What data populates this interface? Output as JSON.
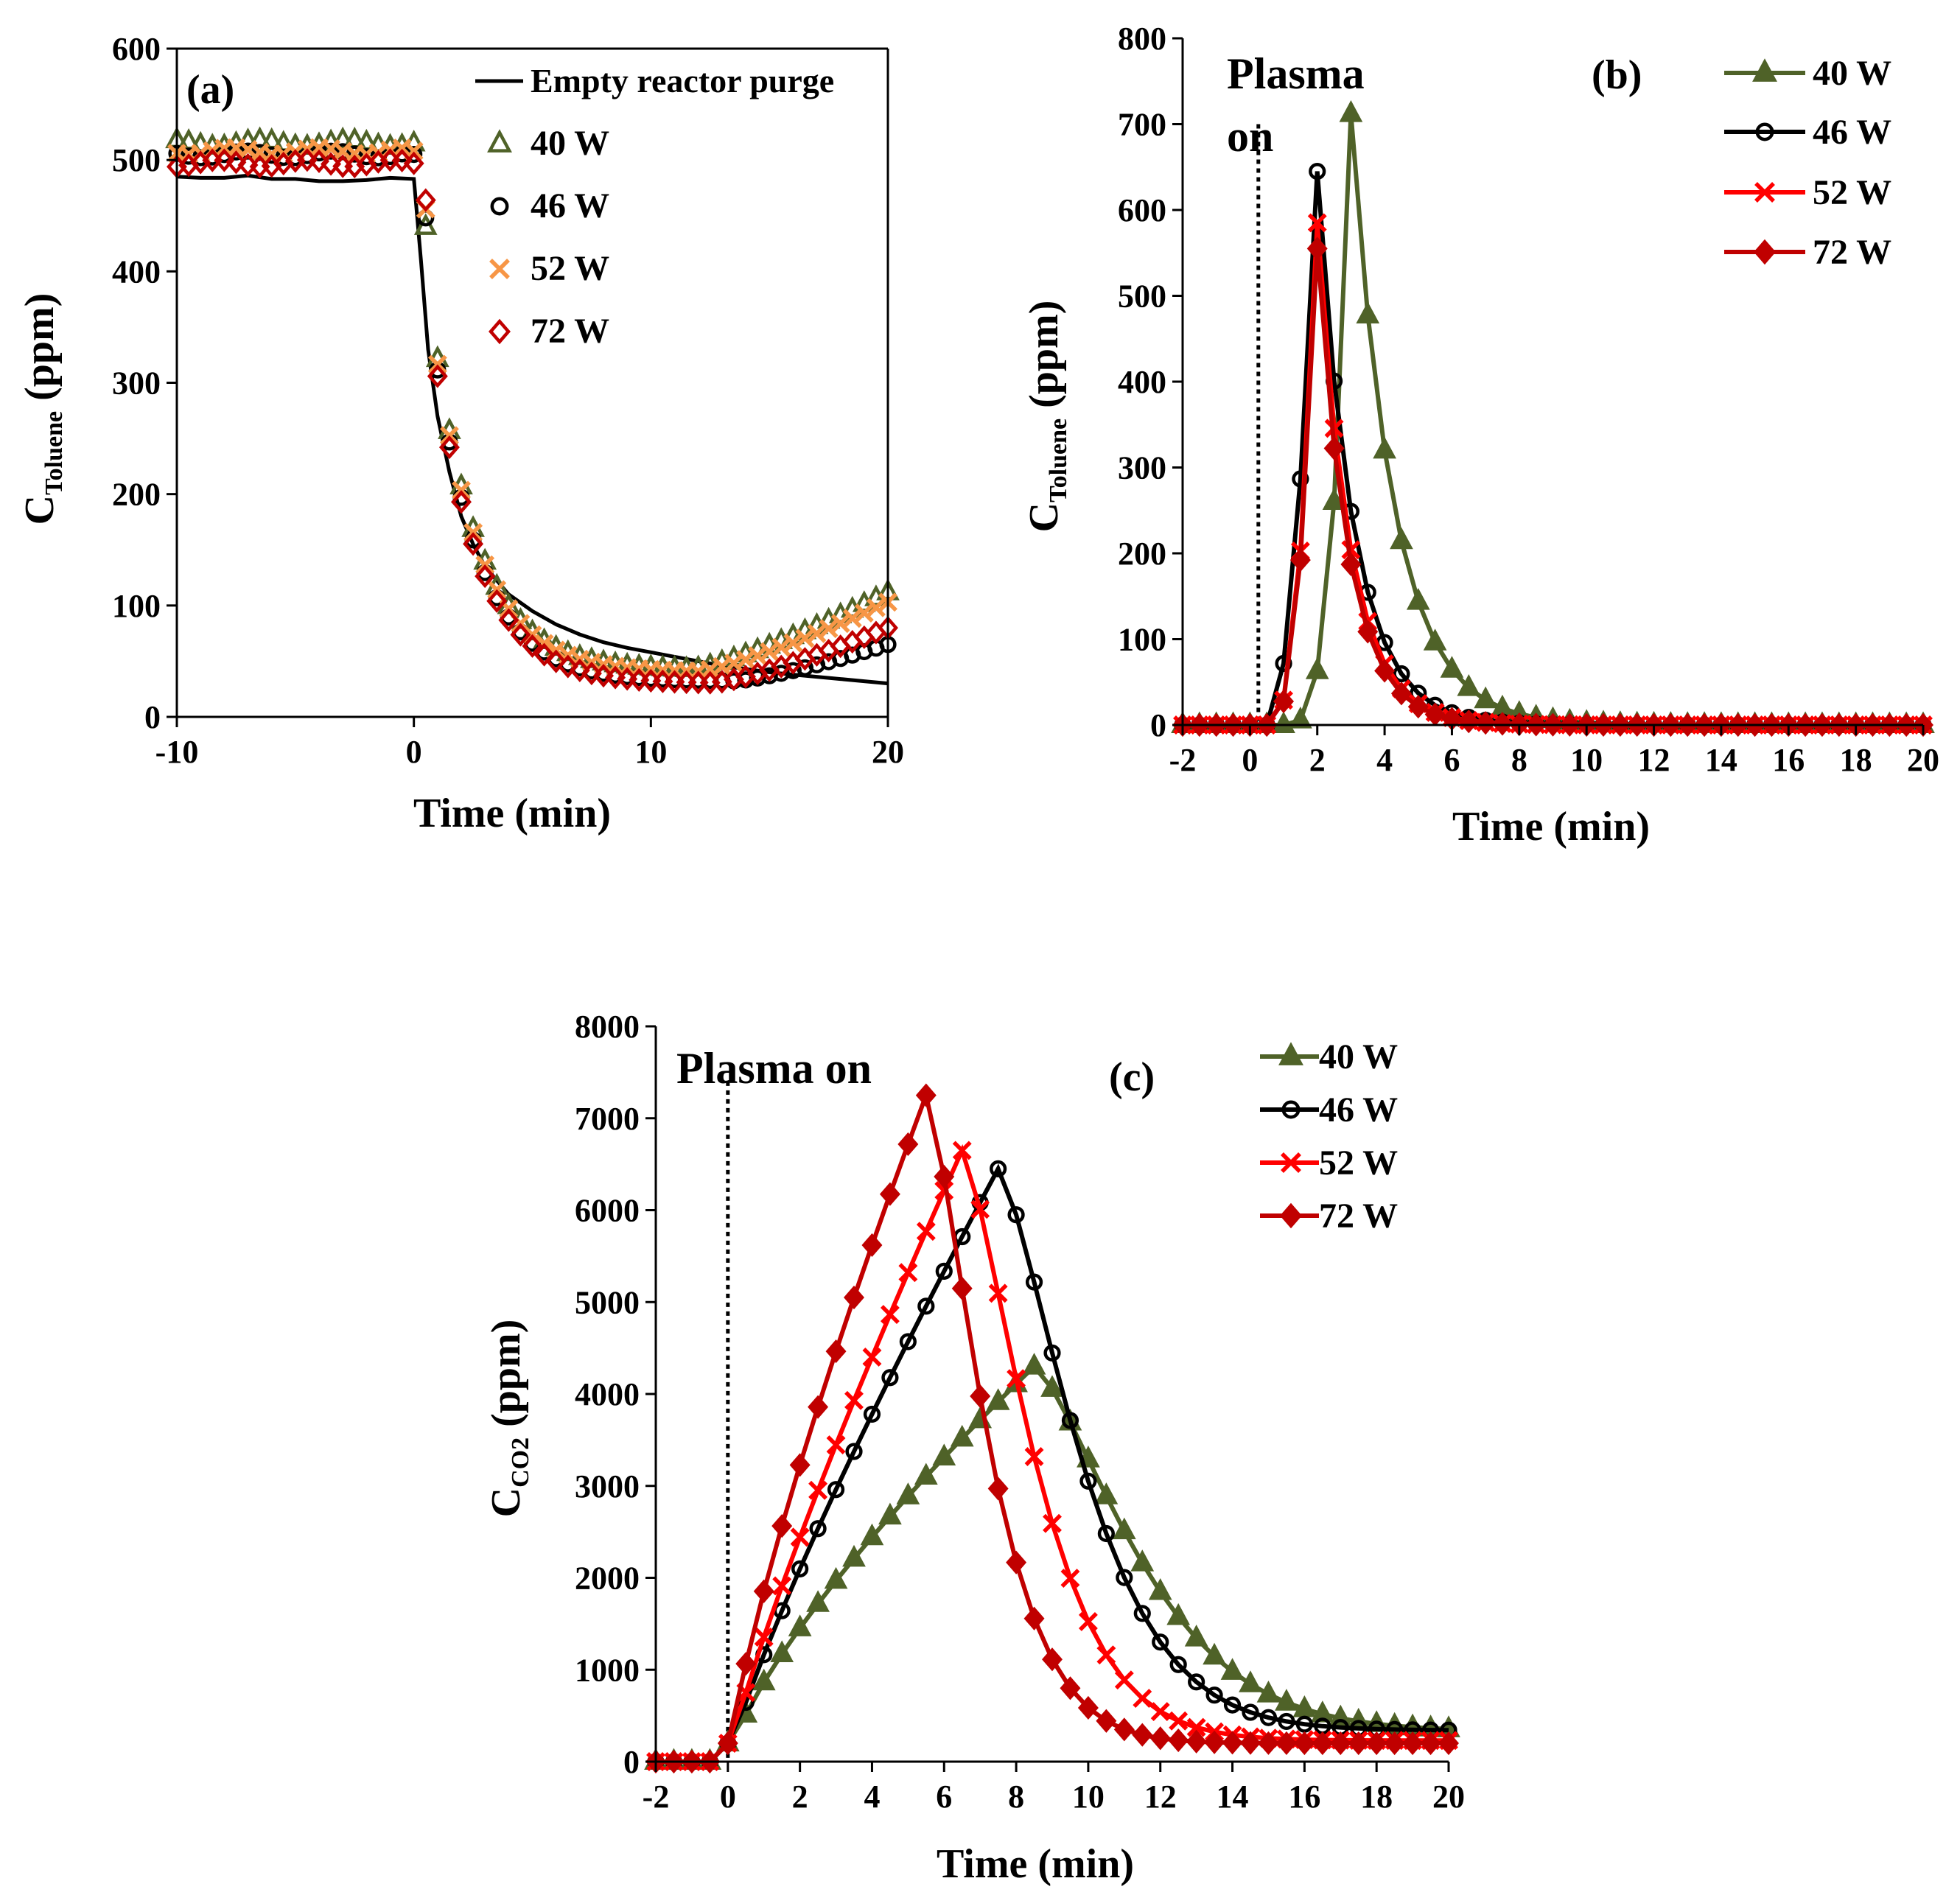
{
  "colors": {
    "w40": "#4F6228",
    "w46": "#000000",
    "w52": "#FF0000",
    "w72": "#C00000",
    "w52a": "#F79646",
    "w72a": "#C00000",
    "axis": "#000000"
  },
  "chart_data": [
    {
      "type": "scatter",
      "panel_label": "(a)",
      "xlabel": "Time (min)",
      "ylabel_main": "C",
      "ylabel_sub": "Toluene",
      "ylabel_unit": " (ppm)",
      "xlim": [
        -10,
        20
      ],
      "ylim": [
        0,
        600
      ],
      "xticks": [
        "-10",
        "0",
        "10",
        "20"
      ],
      "yticks": [
        "0",
        "100",
        "200",
        "300",
        "400",
        "500",
        "600"
      ],
      "legend_position": "top-right",
      "line_series": {
        "name": "Empty reactor purge",
        "x": [
          -10,
          -9,
          -8,
          -7,
          -6,
          -5,
          -4,
          -3,
          -2,
          -1,
          0,
          0.3,
          0.6,
          1,
          1.5,
          2,
          2.5,
          3,
          4,
          5,
          6,
          7,
          8,
          9,
          10,
          11,
          12,
          13,
          14,
          15,
          16,
          17,
          18,
          19,
          20
        ],
        "values": [
          485,
          484,
          484,
          486,
          483,
          483,
          481,
          481,
          482,
          484,
          483,
          410,
          330,
          270,
          220,
          180,
          155,
          135,
          110,
          95,
          83,
          74,
          67,
          62,
          58,
          54,
          50,
          46,
          43,
          40,
          38,
          36,
          34,
          32,
          30
        ]
      },
      "series": [
        {
          "name": "40 W",
          "marker": "triangle-open",
          "color_key": "w40"
        },
        {
          "name": "46 W",
          "marker": "circle-open",
          "color_key": "w46"
        },
        {
          "name": "52 W",
          "marker": "x",
          "color_key": "w52a"
        },
        {
          "name": "72 W",
          "marker": "diamond-open",
          "color_key": "w72a"
        }
      ]
    },
    {
      "type": "line",
      "panel_label": "(b)",
      "annotation": [
        "Plasma",
        "on"
      ],
      "xlabel": "Time (min)",
      "ylabel_main": "C",
      "ylabel_sub": "Toluene",
      "ylabel_unit": " (ppm)",
      "xlim": [
        -2,
        20
      ],
      "ylim": [
        0,
        800
      ],
      "xticks": [
        "-2",
        "0",
        "2",
        "4",
        "6",
        "8",
        "10",
        "12",
        "14",
        "16",
        "18",
        "20"
      ],
      "yticks": [
        "0",
        "100",
        "200",
        "300",
        "400",
        "500",
        "600",
        "700",
        "800"
      ],
      "legend_position": "top-right",
      "series": [
        {
          "name": "40 W",
          "marker": "triangle",
          "color_key": "w40",
          "peak_x": 3,
          "peak_y": 712
        },
        {
          "name": "46 W",
          "marker": "circle",
          "color_key": "w46",
          "peak_x": 2,
          "peak_y": 645
        },
        {
          "name": "52 W",
          "marker": "x",
          "color_key": "w52",
          "peak_x": 2,
          "peak_y": 585
        },
        {
          "name": "72 W",
          "marker": "diamond",
          "color_key": "w72",
          "peak_x": 2,
          "peak_y": 555
        }
      ]
    },
    {
      "type": "line",
      "panel_label": "(c)",
      "annotation": [
        "Plasma on"
      ],
      "xlabel": "Time (min)",
      "ylabel_main": "C",
      "ylabel_sub": "CO2",
      "ylabel_unit": " (ppm)",
      "xlim": [
        -2,
        20
      ],
      "ylim": [
        0,
        8000
      ],
      "xticks": [
        "-2",
        "0",
        "2",
        "4",
        "6",
        "8",
        "10",
        "12",
        "14",
        "16",
        "18",
        "20"
      ],
      "yticks": [
        "0",
        "1000",
        "2000",
        "3000",
        "4000",
        "5000",
        "6000",
        "7000",
        "8000"
      ],
      "legend_position": "top-right",
      "series": [
        {
          "name": "40 W",
          "marker": "triangle",
          "color_key": "w40",
          "peak_x": 8.5,
          "peak_y": 4300
        },
        {
          "name": "46 W",
          "marker": "circle",
          "color_key": "w46",
          "peak_x": 7.5,
          "peak_y": 6450
        },
        {
          "name": "52 W",
          "marker": "x",
          "color_key": "w52",
          "peak_x": 6.5,
          "peak_y": 6650
        },
        {
          "name": "72 W",
          "marker": "diamond",
          "color_key": "w72",
          "peak_x": 5.5,
          "peak_y": 7250
        }
      ]
    }
  ]
}
